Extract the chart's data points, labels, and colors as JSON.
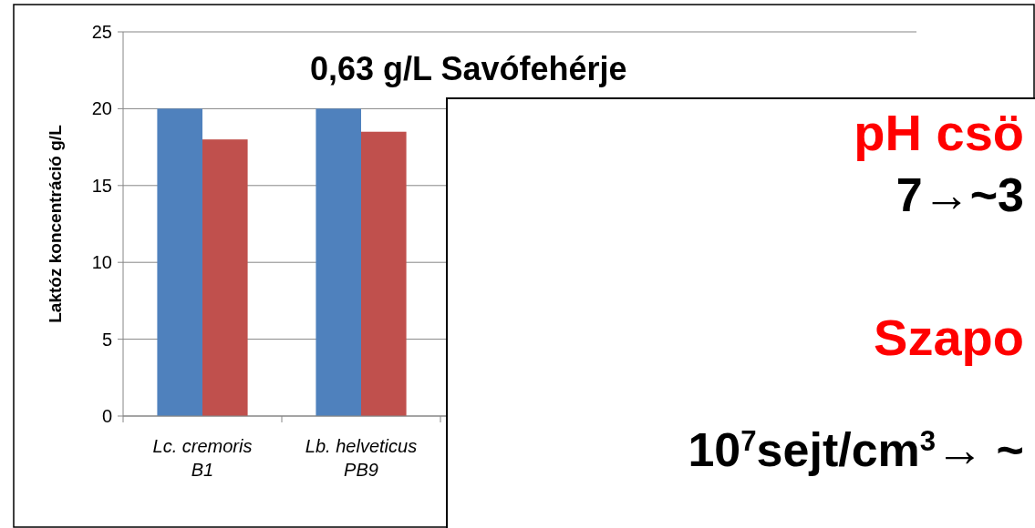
{
  "chart_data": {
    "type": "bar",
    "title": "0,63 g/L Savófehérje",
    "ylabel": "Laktóz koncentráció g/L",
    "categories": [
      "Lc. cremoris B1",
      "Lb. helveticus PB9",
      null,
      null,
      null
    ],
    "series": [
      {
        "color": "#4f81bd",
        "values": [
          20,
          20,
          null,
          null,
          null
        ]
      },
      {
        "color": "#c0504d",
        "values": [
          18,
          18.5,
          null,
          null,
          null
        ]
      }
    ],
    "ylim": [
      0,
      25
    ],
    "yticks": [
      0,
      5,
      10,
      15,
      20,
      25
    ],
    "grid": "y",
    "annotations": [
      "pH csö",
      "7→~3",
      "Szapo",
      "10$^{7}$sejt/cm$^{3}$→ ~"
    ]
  }
}
